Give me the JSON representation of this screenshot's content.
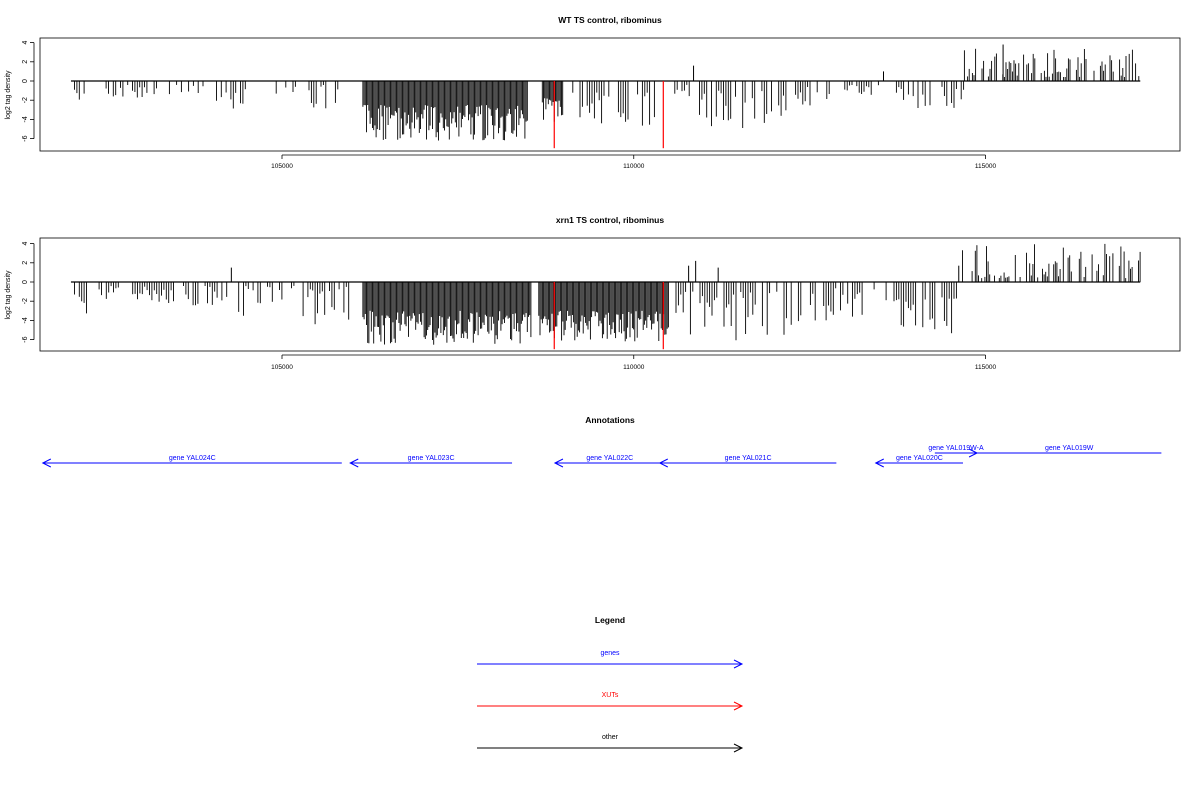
{
  "chart_data": [
    {
      "type": "bar",
      "title": "WT TS control, ribominus",
      "ylabel": "log2 tag density",
      "xlabel": "",
      "xlim": [
        102000,
        117200
      ],
      "ylim": [
        -7,
        4.6
      ],
      "yticks": [
        -6,
        -4,
        -2,
        0,
        2,
        4
      ],
      "xticks": [
        105000,
        110000,
        115000
      ],
      "colors": {
        "bars": "#000000",
        "xut": "#ff0000",
        "baseline": "#000000"
      },
      "baseline": {
        "y": 0,
        "from": 102000,
        "to": 117200
      },
      "segments": [
        {
          "from": 102050,
          "to": 102250,
          "depth": [
            -0.6,
            -2.6
          ]
        },
        {
          "from": 102500,
          "to": 103250,
          "depth": [
            -0.4,
            -1.8
          ]
        },
        {
          "from": 103400,
          "to": 103900,
          "depth": [
            -0.4,
            -1.6
          ]
        },
        {
          "from": 104000,
          "to": 104500,
          "depth": [
            -0.8,
            -3.0
          ]
        },
        {
          "from": 104850,
          "to": 105200,
          "depth": [
            -0.4,
            -1.6
          ]
        },
        {
          "from": 105350,
          "to": 105800,
          "depth": [
            -0.4,
            -3.0
          ]
        },
        {
          "from": 106150,
          "to": 108500,
          "depth": [
            -2.5,
            -6.2
          ]
        },
        {
          "from": 108700,
          "to": 109000,
          "depth": [
            -1.8,
            -4.4
          ]
        },
        {
          "from": 109100,
          "to": 110300,
          "depth": [
            -1.2,
            -4.8
          ]
        },
        {
          "from": 110550,
          "to": 110800,
          "depth": [
            -0.4,
            -2.2
          ]
        },
        {
          "from": 110900,
          "to": 112200,
          "depth": [
            -1.0,
            -5.0
          ]
        },
        {
          "from": 112300,
          "to": 112800,
          "depth": [
            -0.6,
            -2.6
          ]
        },
        {
          "from": 113000,
          "to": 113500,
          "depth": [
            -0.4,
            -1.6
          ]
        },
        {
          "from": 113700,
          "to": 114700,
          "depth": [
            -0.6,
            -3.2
          ]
        }
      ],
      "positive_segments": [
        {
          "from": 114700,
          "to": 117200,
          "height": [
            0.4,
            3.6
          ]
        }
      ],
      "spikes": [
        {
          "x": 110850,
          "value": 1.6
        },
        {
          "x": 113550,
          "value": 1.0
        },
        {
          "x": 115250,
          "value": 3.8
        }
      ],
      "xut_lines": [
        {
          "x": 108870,
          "value": -7
        },
        {
          "x": 110420,
          "value": -7
        }
      ]
    },
    {
      "type": "bar",
      "title": "xrn1 TS control, ribominus",
      "ylabel": "log2 tag density",
      "xlabel": "",
      "xlim": [
        102000,
        117200
      ],
      "ylim": [
        -7,
        4.6
      ],
      "yticks": [
        -6,
        -4,
        -2,
        0,
        2,
        4
      ],
      "xticks": [
        105000,
        110000,
        115000
      ],
      "colors": {
        "bars": "#000000",
        "xut": "#ff0000",
        "baseline": "#000000"
      },
      "baseline": {
        "y": 0,
        "from": 102000,
        "to": 117200
      },
      "segments": [
        {
          "from": 102050,
          "to": 102300,
          "depth": [
            -0.6,
            -3.6
          ]
        },
        {
          "from": 102400,
          "to": 103500,
          "depth": [
            -0.4,
            -2.2
          ]
        },
        {
          "from": 103600,
          "to": 104300,
          "depth": [
            -0.4,
            -2.6
          ]
        },
        {
          "from": 104350,
          "to": 105200,
          "depth": [
            -0.4,
            -3.6
          ]
        },
        {
          "from": 105300,
          "to": 105950,
          "depth": [
            -0.4,
            -5.0
          ]
        },
        {
          "from": 106150,
          "to": 108550,
          "depth": [
            -3.0,
            -6.6
          ]
        },
        {
          "from": 108650,
          "to": 110500,
          "depth": [
            -3.0,
            -6.2
          ]
        },
        {
          "from": 110600,
          "to": 112600,
          "depth": [
            -1.0,
            -6.2
          ]
        },
        {
          "from": 112700,
          "to": 113600,
          "depth": [
            -0.6,
            -4.6
          ]
        },
        {
          "from": 113700,
          "to": 114650,
          "depth": [
            -1.6,
            -5.4
          ]
        }
      ],
      "positive_segments": [
        {
          "from": 114650,
          "to": 117200,
          "height": [
            0.4,
            4.0
          ]
        }
      ],
      "spikes": [
        {
          "x": 104280,
          "value": 1.5
        },
        {
          "x": 110780,
          "value": 1.7
        },
        {
          "x": 110880,
          "value": 2.2
        },
        {
          "x": 111200,
          "value": 1.5
        },
        {
          "x": 114620,
          "value": 1.7
        }
      ],
      "xut_lines": [
        {
          "x": 108870,
          "value": -7
        },
        {
          "x": 110420,
          "value": -7
        }
      ]
    }
  ],
  "annotations": {
    "title": "Annotations",
    "color": "#0000ff",
    "genes": [
      {
        "label": "gene YAL024C",
        "from": 105850,
        "to": 101600,
        "direction": "left"
      },
      {
        "label": "gene YAL023C",
        "from": 108270,
        "to": 105970,
        "direction": "left"
      },
      {
        "label": "gene YAL022C",
        "from": 110440,
        "to": 108880,
        "direction": "left"
      },
      {
        "label": "gene YAL021C",
        "from": 112880,
        "to": 110370,
        "direction": "left"
      },
      {
        "label": "gene YAL020C",
        "from": 114680,
        "to": 113440,
        "direction": "left"
      },
      {
        "label": "gene YAL019W-A",
        "from": 114280,
        "to": 114880,
        "direction": "right"
      },
      {
        "label": "gene YAL019W",
        "from": 114880,
        "to": 117500,
        "direction": "right"
      }
    ]
  },
  "legend": {
    "title": "Legend",
    "items": [
      {
        "label": "genes",
        "color": "#0000ff"
      },
      {
        "label": "XUTs",
        "color": "#ff0000"
      },
      {
        "label": "other",
        "color": "#000000"
      }
    ]
  }
}
